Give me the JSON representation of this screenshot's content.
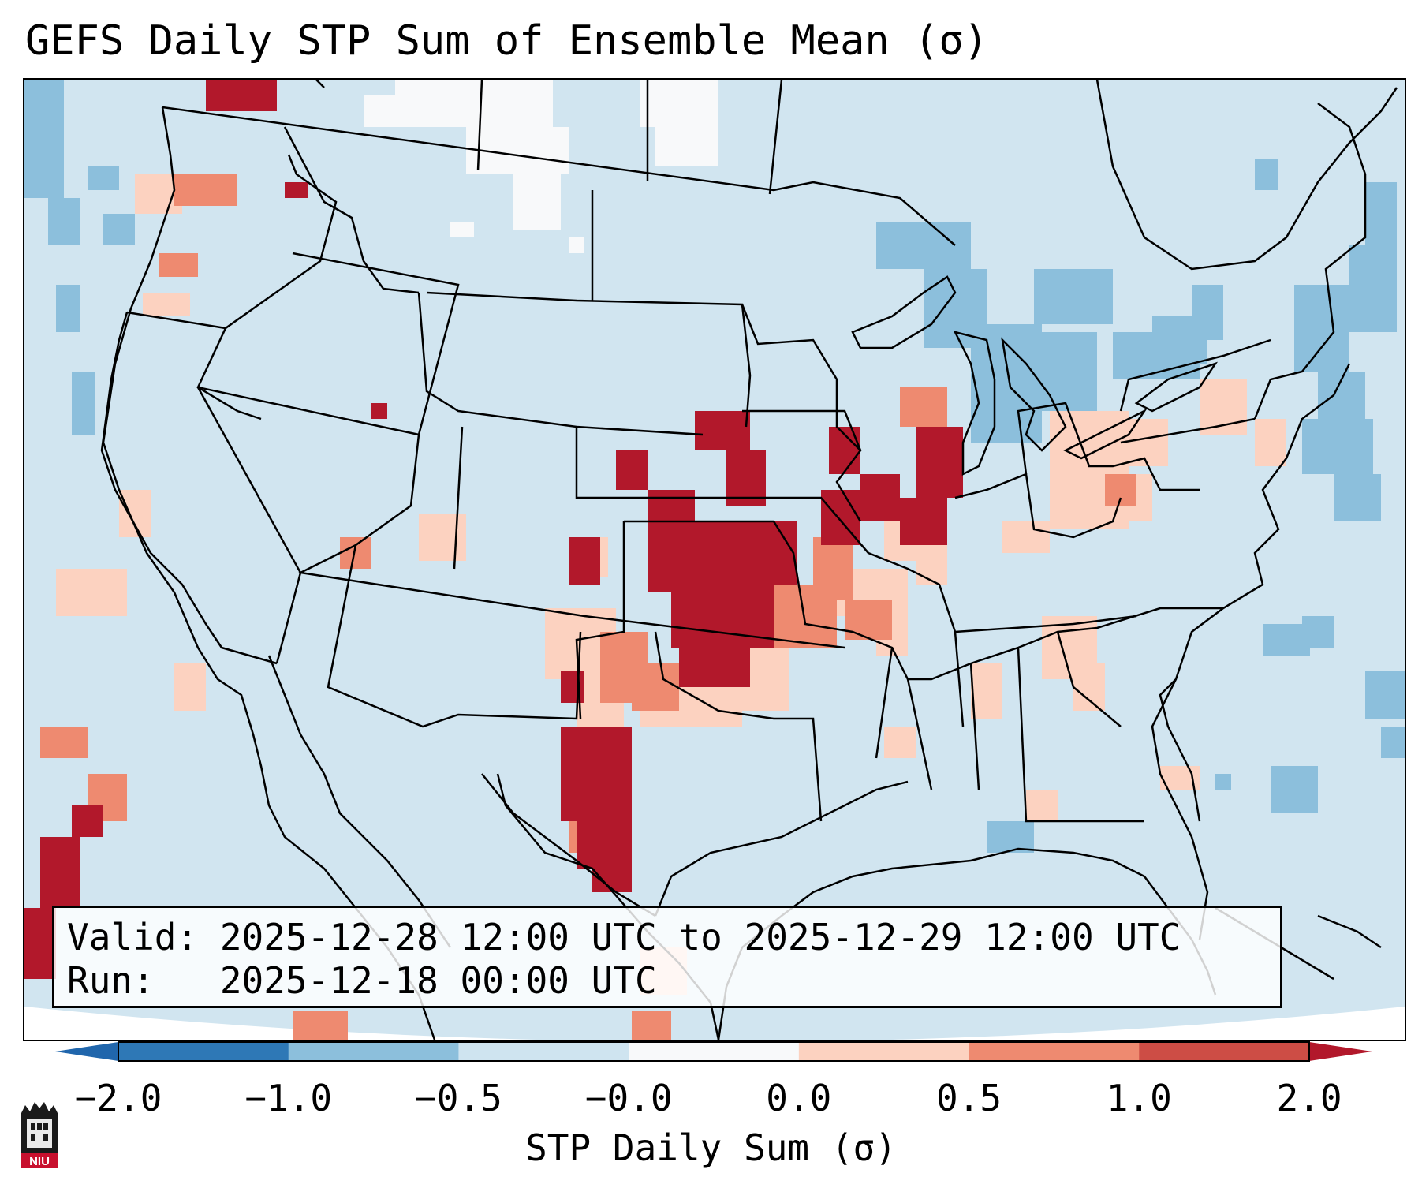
{
  "title": "GEFS Daily STP Sum of Ensemble Mean (σ)",
  "info": {
    "valid_line": "Valid: 2025-12-28 12:00 UTC to 2025-12-29 12:00 UTC",
    "run_line": "Run:   2025-12-18 00:00 UTC"
  },
  "colorbar": {
    "label": "STP Daily Sum (σ)",
    "ticks": [
      "−2.0",
      "−1.0",
      "−0.5",
      "−0.0",
      "0.0",
      "0.5",
      "1.0",
      "2.0"
    ],
    "colors": [
      "#2e78b6",
      "#8cbfdc",
      "#cfe4f0",
      "#f8f9fa",
      "#fcd2c0",
      "#ee8a70",
      "#cd4d45"
    ],
    "extend_low": "#2066ac",
    "extend_high": "#b2182b"
  },
  "map": {
    "region": "Contiguous United States",
    "background_color": "#d1e5f0"
  },
  "logo": {
    "text": "NIU"
  }
}
